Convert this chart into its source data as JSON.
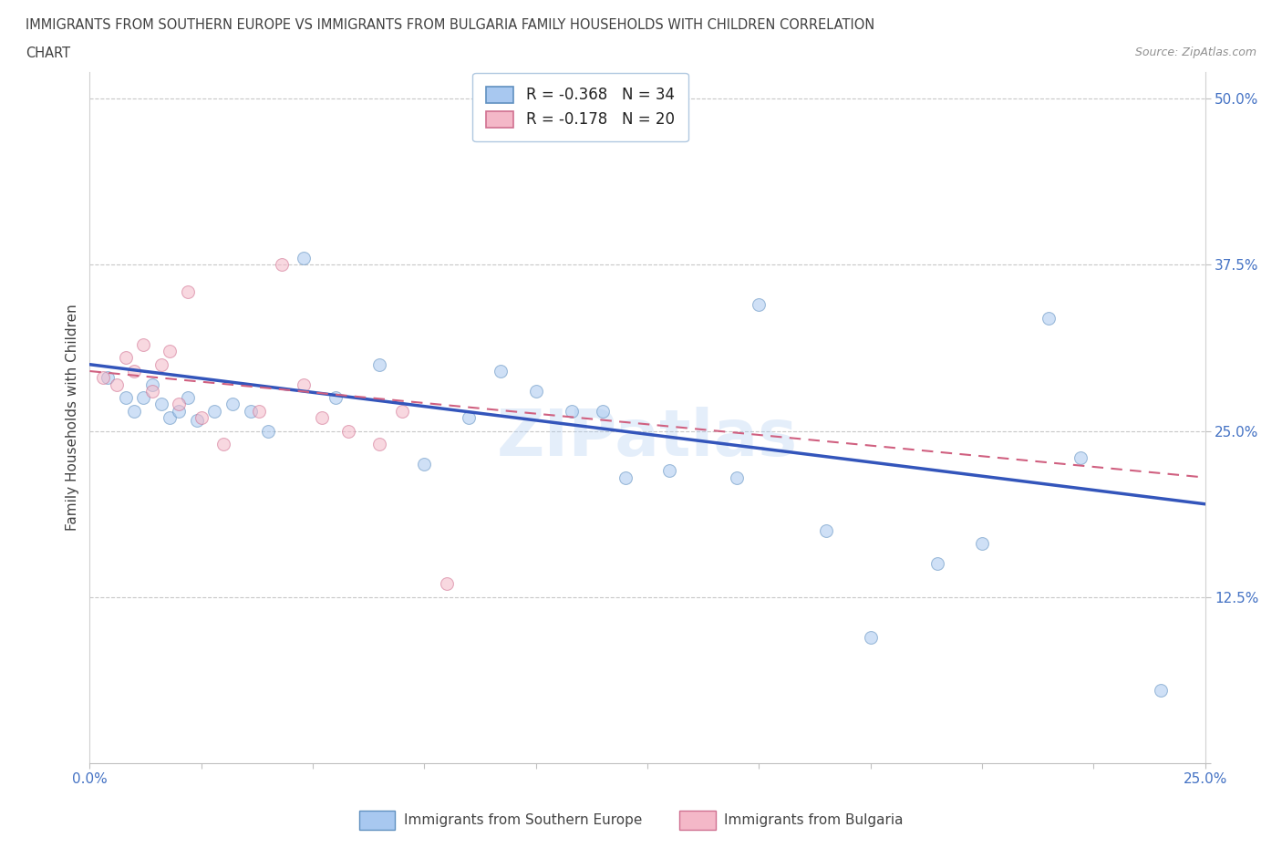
{
  "title_line1": "IMMIGRANTS FROM SOUTHERN EUROPE VS IMMIGRANTS FROM BULGARIA FAMILY HOUSEHOLDS WITH CHILDREN CORRELATION",
  "title_line2": "CHART",
  "source_text": "Source: ZipAtlas.com",
  "ylabel": "Family Households with Children",
  "xlim": [
    0.0,
    0.25
  ],
  "ylim": [
    0.0,
    0.52
  ],
  "yticks": [
    0.0,
    0.125,
    0.25,
    0.375,
    0.5
  ],
  "ytick_labels": [
    "",
    "12.5%",
    "25.0%",
    "37.5%",
    "50.0%"
  ],
  "xticks": [
    0.0,
    0.025,
    0.05,
    0.075,
    0.1,
    0.125,
    0.15,
    0.175,
    0.2,
    0.225,
    0.25
  ],
  "xtick_labels": [
    "0.0%",
    "",
    "",
    "",
    "",
    "",
    "",
    "",
    "",
    "",
    "25.0%"
  ],
  "watermark": "ZIPatlas",
  "legend_label_blue": "R = -0.368   N = 34",
  "legend_label_pink": "R = -0.178   N = 20",
  "bottom_label_blue": "Immigrants from Southern Europe",
  "bottom_label_pink": "Immigrants from Bulgaria",
  "blue_scatter_x": [
    0.004,
    0.008,
    0.01,
    0.012,
    0.014,
    0.016,
    0.018,
    0.02,
    0.022,
    0.024,
    0.028,
    0.032,
    0.036,
    0.04,
    0.048,
    0.055,
    0.065,
    0.075,
    0.085,
    0.092,
    0.1,
    0.108,
    0.115,
    0.12,
    0.13,
    0.145,
    0.15,
    0.165,
    0.175,
    0.19,
    0.2,
    0.215,
    0.222,
    0.24
  ],
  "blue_scatter_y": [
    0.29,
    0.275,
    0.265,
    0.275,
    0.285,
    0.27,
    0.26,
    0.265,
    0.275,
    0.258,
    0.265,
    0.27,
    0.265,
    0.25,
    0.38,
    0.275,
    0.3,
    0.225,
    0.26,
    0.295,
    0.28,
    0.265,
    0.265,
    0.215,
    0.22,
    0.215,
    0.345,
    0.175,
    0.095,
    0.15,
    0.165,
    0.335,
    0.23,
    0.055
  ],
  "pink_scatter_x": [
    0.003,
    0.006,
    0.008,
    0.01,
    0.012,
    0.014,
    0.016,
    0.018,
    0.02,
    0.022,
    0.025,
    0.03,
    0.038,
    0.043,
    0.048,
    0.052,
    0.058,
    0.065,
    0.07,
    0.08
  ],
  "pink_scatter_y": [
    0.29,
    0.285,
    0.305,
    0.295,
    0.315,
    0.28,
    0.3,
    0.31,
    0.27,
    0.355,
    0.26,
    0.24,
    0.265,
    0.375,
    0.285,
    0.26,
    0.25,
    0.24,
    0.265,
    0.135
  ],
  "blue_line_x": [
    0.0,
    0.25
  ],
  "blue_line_y": [
    0.3,
    0.195
  ],
  "pink_line_x": [
    0.0,
    0.25
  ],
  "pink_line_y": [
    0.295,
    0.215
  ],
  "scatter_size": 100,
  "scatter_alpha": 0.55,
  "blue_color": "#a8c8f0",
  "pink_color": "#f4b8c8",
  "blue_edge_color": "#6090c0",
  "pink_edge_color": "#d07090",
  "blue_line_color": "#3355bb",
  "pink_line_color": "#d06080",
  "pink_line_style": "--",
  "grid_color": "#c8c8c8",
  "axis_color": "#4472c4",
  "title_color": "#404040",
  "source_color": "#909090"
}
